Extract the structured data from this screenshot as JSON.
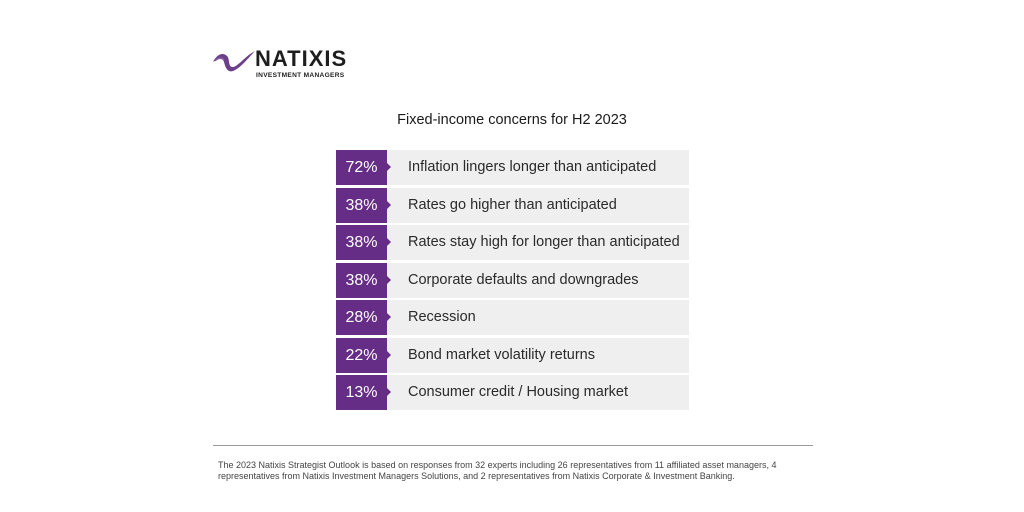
{
  "logo": {
    "brand": "NATIXIS",
    "subtitle": "INVESTMENT MANAGERS",
    "colors": {
      "swoosh": "#6b3f8a",
      "text": "#1e1e1e"
    }
  },
  "accent_color": "#652d86",
  "row_background": "#efefef",
  "chart_data": {
    "type": "table",
    "title": "Fixed-income concerns for H2 2023",
    "categories": [
      "Inflation lingers longer than anticipated",
      "Rates go higher than anticipated",
      "Rates stay high for longer than anticipated",
      "Corporate defaults and downgrades",
      "Recession",
      "Bond market volatility returns",
      "Consumer credit / Housing market"
    ],
    "values": [
      72,
      38,
      38,
      38,
      28,
      22,
      13
    ],
    "value_labels": [
      "72%",
      "38%",
      "38%",
      "38%",
      "28%",
      "22%",
      "13%"
    ],
    "unit": "%"
  },
  "footnote": "The 2023 Natixis Strategist Outlook is based on responses from 32 experts including 26 representatives from 11 affiliated asset managers, 4 representatives from Natixis Investment Managers Solutions, and 2 representatives from Natixis Corporate & Investment Banking."
}
